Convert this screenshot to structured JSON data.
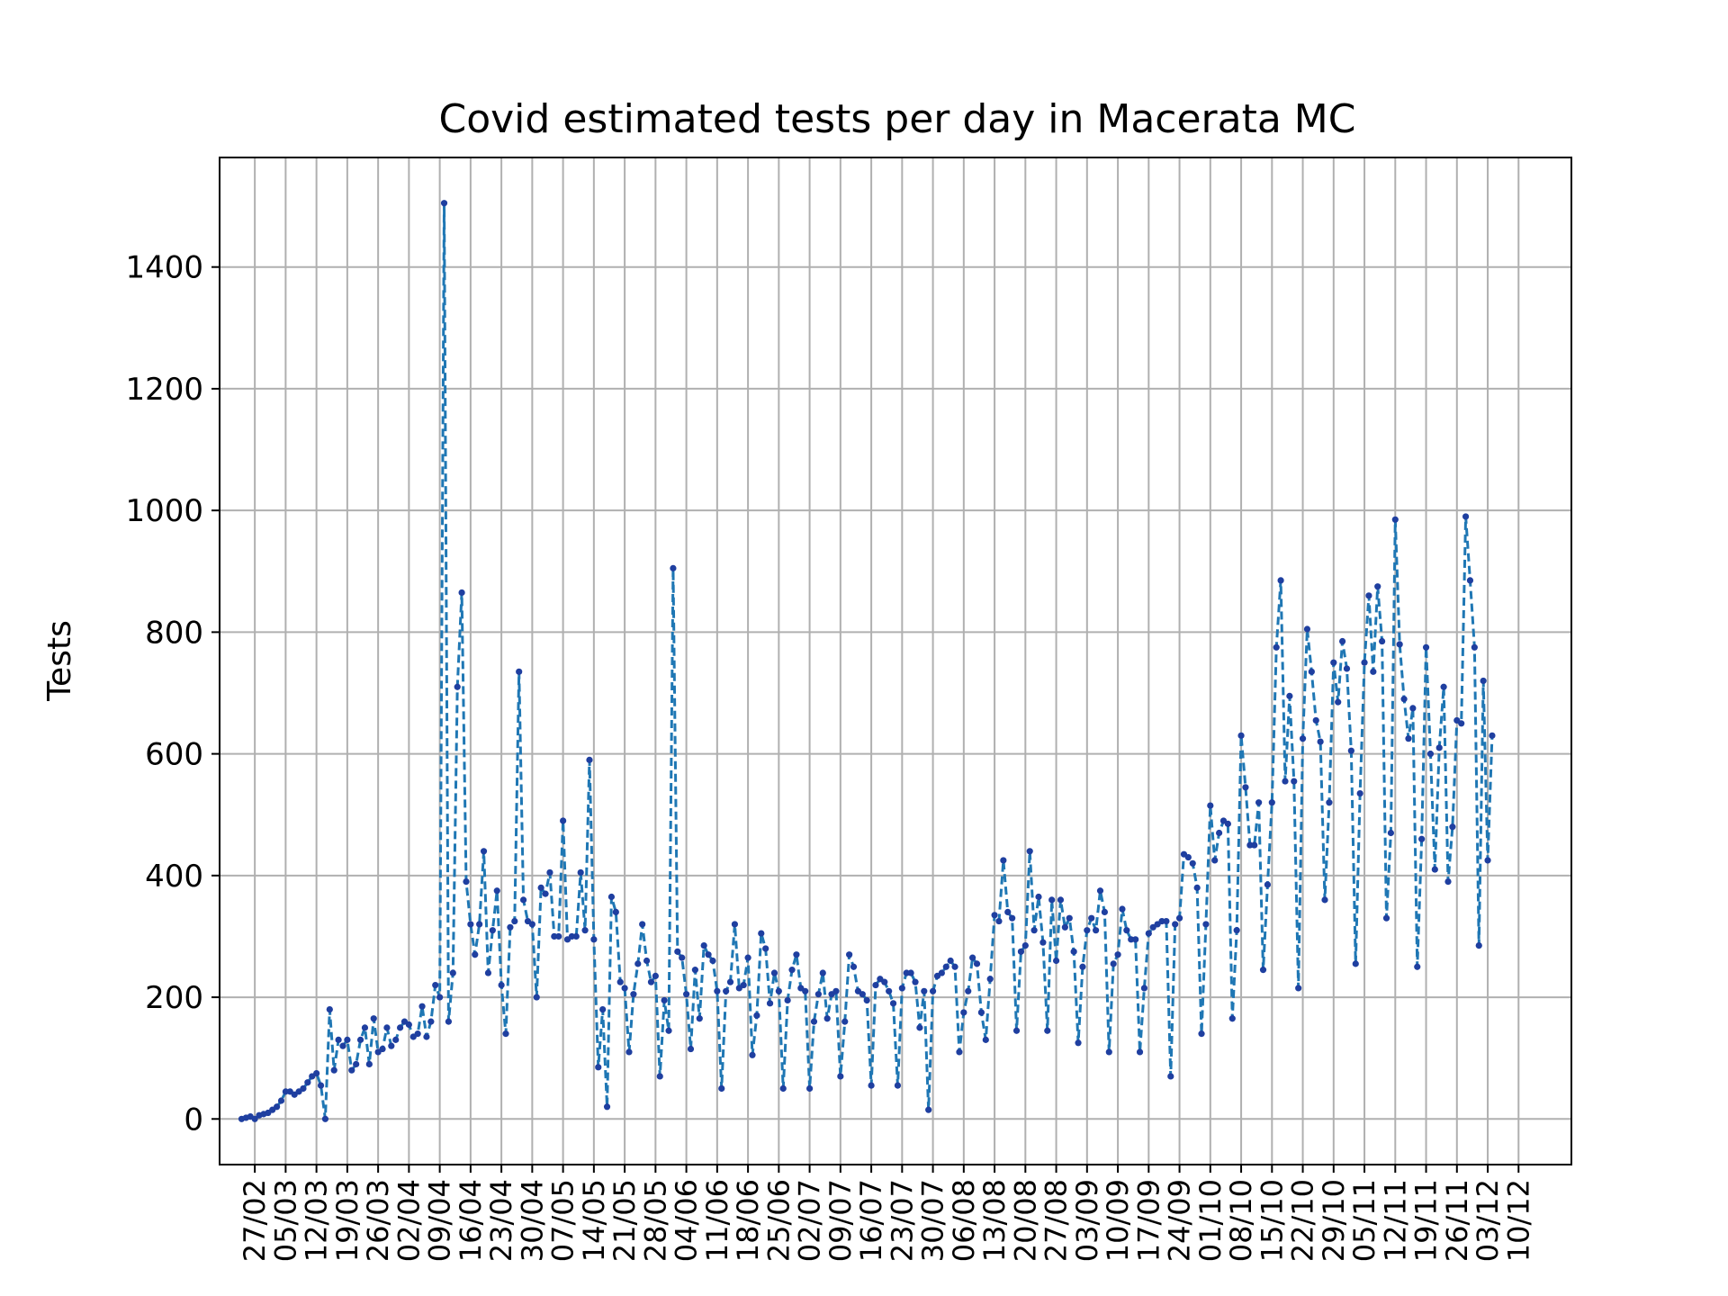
{
  "chart_data": {
    "type": "line",
    "title": "Covid estimated tests per day in Macerata MC",
    "xlabel": "",
    "ylabel": "Tests",
    "ylim": [
      -75,
      1580
    ],
    "yticks": [
      0,
      200,
      400,
      600,
      800,
      1000,
      1200,
      1400
    ],
    "xlim": [
      "2020-02-19",
      "2020-12-22"
    ],
    "xticks": [
      {
        "date": "2020-02-27",
        "label": "27/02"
      },
      {
        "date": "2020-03-05",
        "label": "05/03"
      },
      {
        "date": "2020-03-12",
        "label": "12/03"
      },
      {
        "date": "2020-03-19",
        "label": "19/03"
      },
      {
        "date": "2020-03-26",
        "label": "26/03"
      },
      {
        "date": "2020-04-02",
        "label": "02/04"
      },
      {
        "date": "2020-04-09",
        "label": "09/04"
      },
      {
        "date": "2020-04-16",
        "label": "16/04"
      },
      {
        "date": "2020-04-23",
        "label": "23/04"
      },
      {
        "date": "2020-04-30",
        "label": "30/04"
      },
      {
        "date": "2020-05-07",
        "label": "07/05"
      },
      {
        "date": "2020-05-14",
        "label": "14/05"
      },
      {
        "date": "2020-05-21",
        "label": "21/05"
      },
      {
        "date": "2020-05-28",
        "label": "28/05"
      },
      {
        "date": "2020-06-04",
        "label": "04/06"
      },
      {
        "date": "2020-06-11",
        "label": "11/06"
      },
      {
        "date": "2020-06-18",
        "label": "18/06"
      },
      {
        "date": "2020-06-25",
        "label": "25/06"
      },
      {
        "date": "2020-07-02",
        "label": "02/07"
      },
      {
        "date": "2020-07-09",
        "label": "09/07"
      },
      {
        "date": "2020-07-16",
        "label": "16/07"
      },
      {
        "date": "2020-07-23",
        "label": "23/07"
      },
      {
        "date": "2020-07-30",
        "label": "30/07"
      },
      {
        "date": "2020-08-06",
        "label": "06/08"
      },
      {
        "date": "2020-08-13",
        "label": "13/08"
      },
      {
        "date": "2020-08-20",
        "label": "20/08"
      },
      {
        "date": "2020-08-27",
        "label": "27/08"
      },
      {
        "date": "2020-09-03",
        "label": "03/09"
      },
      {
        "date": "2020-09-10",
        "label": "10/09"
      },
      {
        "date": "2020-09-17",
        "label": "17/09"
      },
      {
        "date": "2020-09-24",
        "label": "24/09"
      },
      {
        "date": "2020-10-01",
        "label": "01/10"
      },
      {
        "date": "2020-10-08",
        "label": "08/10"
      },
      {
        "date": "2020-10-15",
        "label": "15/10"
      },
      {
        "date": "2020-10-22",
        "label": "22/10"
      },
      {
        "date": "2020-10-29",
        "label": "29/10"
      },
      {
        "date": "2020-11-05",
        "label": "05/11"
      },
      {
        "date": "2020-11-12",
        "label": "12/11"
      },
      {
        "date": "2020-11-19",
        "label": "19/11"
      },
      {
        "date": "2020-11-26",
        "label": "26/11"
      },
      {
        "date": "2020-12-03",
        "label": "03/12"
      },
      {
        "date": "2020-12-10",
        "label": "10/12"
      }
    ],
    "grid": true,
    "line_color": "#1f77b4",
    "line_style": "dashed",
    "marker_color": "#1f3fa0",
    "series": [
      {
        "start_date": "2020-02-24",
        "values": [
          0,
          2,
          4,
          0,
          6,
          8,
          10,
          15,
          20,
          30,
          45,
          45,
          40,
          45,
          50,
          60,
          70,
          75,
          55,
          0,
          180,
          80,
          130,
          120,
          130,
          80,
          90,
          130,
          150,
          90,
          165,
          110,
          115,
          150,
          120,
          130,
          150,
          160,
          155,
          135,
          140,
          185,
          135,
          160,
          220,
          200,
          1505,
          160,
          240,
          710,
          865,
          390,
          320,
          270,
          320,
          440,
          240,
          310,
          375,
          220,
          140,
          315,
          325,
          735,
          360,
          325,
          320,
          200,
          380,
          370,
          405,
          300,
          300,
          490,
          295,
          300,
          300,
          405,
          310,
          590,
          295,
          85,
          180,
          20,
          365,
          340,
          225,
          215,
          110,
          205,
          255,
          320,
          260,
          225,
          235,
          70,
          195,
          145,
          905,
          275,
          265,
          205,
          115,
          245,
          165,
          285,
          270,
          260,
          210,
          50,
          210,
          225,
          320,
          215,
          220,
          265,
          105,
          170,
          305,
          280,
          190,
          240,
          210,
          50,
          195,
          245,
          270,
          215,
          210,
          50,
          160,
          205,
          240,
          165,
          205,
          210,
          70,
          160,
          270,
          250,
          210,
          205,
          195,
          55,
          220,
          230,
          225,
          210,
          190,
          55,
          215,
          240,
          240,
          225,
          150,
          210,
          15,
          210,
          235,
          240,
          250,
          260,
          250,
          110,
          175,
          210,
          265,
          255,
          175,
          130,
          230,
          335,
          325,
          425,
          340,
          330,
          145,
          275,
          285,
          440,
          310,
          365,
          290,
          145,
          360,
          260,
          360,
          315,
          330,
          275,
          125,
          250,
          310,
          330,
          310,
          375,
          340,
          110,
          255,
          270,
          345,
          310,
          295,
          295,
          110,
          215,
          305,
          315,
          320,
          325,
          325,
          70,
          320,
          330,
          435,
          430,
          420,
          380,
          140,
          320,
          515,
          425,
          470,
          490,
          485,
          165,
          310,
          630,
          545,
          450,
          450,
          520,
          245,
          385,
          520,
          775,
          885,
          555,
          695,
          555,
          215,
          625,
          805,
          735,
          655,
          620,
          360,
          520,
          750,
          685,
          785,
          740,
          605,
          255,
          535,
          750,
          860,
          735,
          875,
          785,
          330,
          470,
          985,
          780,
          690,
          625,
          675,
          250,
          460,
          775,
          600,
          410,
          610,
          710,
          390,
          480,
          655,
          650,
          990,
          885,
          775,
          285,
          720,
          425,
          630
        ]
      }
    ]
  }
}
